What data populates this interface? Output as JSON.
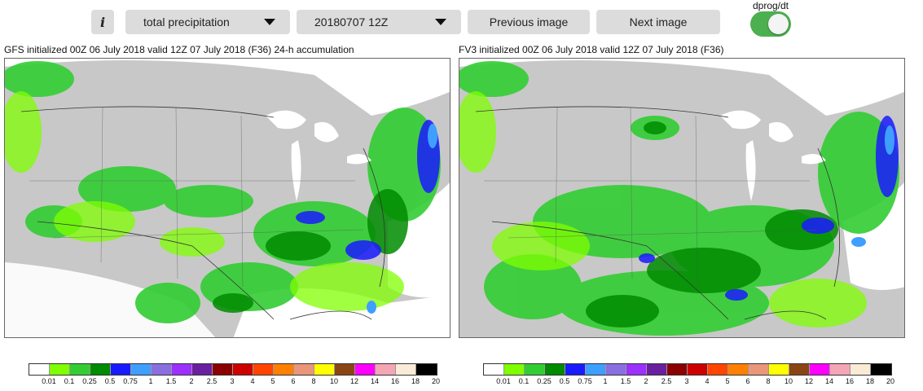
{
  "toolbar": {
    "info_label": "i",
    "variable_select": {
      "value": "total precipitation"
    },
    "date_select": {
      "value": "20180707 12Z"
    },
    "prev_label": "Previous image",
    "next_label": "Next image",
    "toggle_label": "dprog/dt",
    "toggle_on": true,
    "toggle_color": "#4caf50"
  },
  "panels": [
    {
      "title": "GFS initialized 00Z 06 July 2018 valid 12Z 07 July 2018 (F36) 24-h accumulation"
    },
    {
      "title": "FV3 initialized 00Z 06 July 2018 valid 12Z 07 July 2018 (F36)"
    }
  ],
  "colorbar": {
    "ticks": [
      "0.01",
      "0.1",
      "0.25",
      "0.5",
      "0.75",
      "1",
      "1.5",
      "2",
      "2.5",
      "3",
      "4",
      "5",
      "6",
      "8",
      "10",
      "12",
      "14",
      "16",
      "18",
      "20"
    ],
    "colors": [
      "#ffffff",
      "#7fff00",
      "#32cd32",
      "#008b00",
      "#1a1aff",
      "#3e9fff",
      "#8a6fe0",
      "#9b30ff",
      "#6a1fa0",
      "#8b0000",
      "#cd0000",
      "#ff4500",
      "#ff7f00",
      "#e9967a",
      "#ffff00",
      "#8b4513",
      "#ff00ff",
      "#f4a6b4",
      "#faebd7",
      "#000000"
    ]
  }
}
